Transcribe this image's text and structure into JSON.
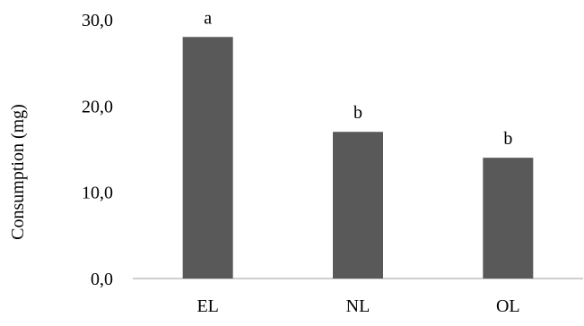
{
  "chart_data": {
    "type": "bar",
    "categories": [
      "EL",
      "NL",
      "OL"
    ],
    "values": [
      28.0,
      17.0,
      14.0
    ],
    "significance_labels": [
      "a",
      "b",
      "b"
    ],
    "title": "",
    "xlabel": "",
    "ylabel": "Consumption (mg)",
    "ylim": [
      0,
      30
    ],
    "yticks": [
      "0,0",
      "10,0",
      "20,0",
      "30,0"
    ],
    "ytick_values": [
      0,
      10,
      20,
      30
    ],
    "grid": false,
    "legend": "none",
    "bar_color": "#595959",
    "axis_color": "#bfbfbf"
  }
}
